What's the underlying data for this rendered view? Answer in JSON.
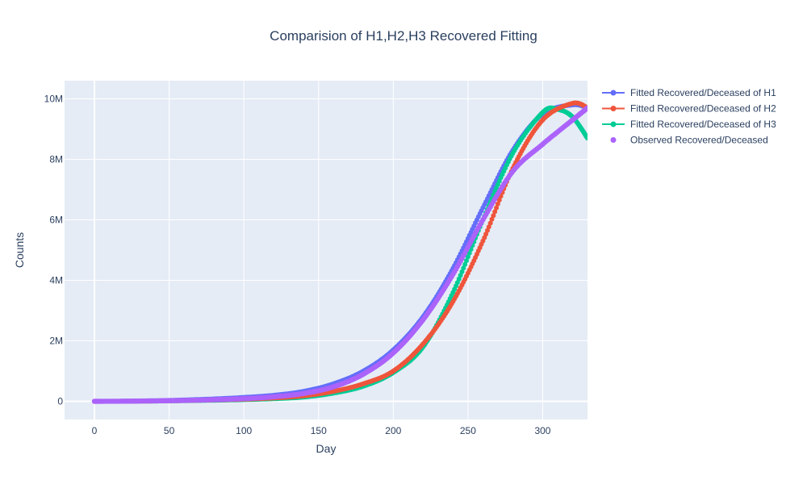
{
  "chart_data": {
    "type": "scatter",
    "title": "Comparision of H1,H2,H3 Recovered Fitting",
    "xlabel": "Day",
    "ylabel": "Counts",
    "xlim": [
      -20,
      330
    ],
    "ylim": [
      -600000,
      10600000
    ],
    "x_ticks": [
      0,
      50,
      100,
      150,
      200,
      250,
      300
    ],
    "x_tick_labels": [
      "0",
      "50",
      "100",
      "150",
      "200",
      "250",
      "300"
    ],
    "y_ticks": [
      0,
      2000000,
      4000000,
      6000000,
      8000000,
      10000000
    ],
    "y_tick_labels": [
      "0",
      "2M",
      "4M",
      "6M",
      "8M",
      "10M"
    ],
    "grid": true,
    "legend_position": "top-right-outside",
    "series": [
      {
        "name": "Fitted Recovered/Deceased of H1",
        "mode": "lines+markers",
        "color": "#636efa",
        "x": [
          0,
          20,
          40,
          60,
          80,
          100,
          120,
          140,
          160,
          180,
          200,
          220,
          240,
          260,
          280,
          300,
          320,
          330
        ],
        "y": [
          0,
          5000,
          20000,
          45000,
          80000,
          130000,
          200000,
          330000,
          580000,
          1000000,
          1700000,
          2800000,
          4400000,
          6400000,
          8300000,
          9500000,
          9800000,
          9700000
        ]
      },
      {
        "name": "Fitted Recovered/Deceased of H2",
        "mode": "lines+markers",
        "color": "#ef553b",
        "x": [
          0,
          20,
          40,
          60,
          80,
          100,
          120,
          140,
          160,
          180,
          200,
          220,
          240,
          260,
          280,
          300,
          320,
          330
        ],
        "y": [
          0,
          3000,
          10000,
          25000,
          45000,
          70000,
          110000,
          180000,
          330000,
          580000,
          1000000,
          1900000,
          3300000,
          5300000,
          7700000,
          9300000,
          9850000,
          9700000
        ]
      },
      {
        "name": "Fitted Recovered/Deceased of H3",
        "mode": "lines+markers",
        "color": "#00cc96",
        "x": [
          0,
          20,
          40,
          60,
          80,
          100,
          120,
          140,
          160,
          180,
          200,
          220,
          240,
          260,
          280,
          300,
          310,
          320,
          330
        ],
        "y": [
          0,
          2000,
          8000,
          20000,
          35000,
          55000,
          85000,
          140000,
          270000,
          500000,
          950000,
          1800000,
          3600000,
          6000000,
          8200000,
          9550000,
          9650000,
          9400000,
          8700000
        ]
      },
      {
        "name": "Observed Recovered/Deceased",
        "mode": "markers",
        "color": "#ab63fa",
        "x": [
          0,
          20,
          40,
          60,
          80,
          100,
          120,
          140,
          160,
          180,
          200,
          220,
          240,
          260,
          280,
          300,
          320,
          330
        ],
        "y": [
          0,
          5000,
          15000,
          30000,
          55000,
          90000,
          150000,
          260000,
          480000,
          900000,
          1600000,
          2700000,
          4200000,
          6000000,
          7600000,
          8500000,
          9300000,
          9700000
        ]
      }
    ]
  }
}
